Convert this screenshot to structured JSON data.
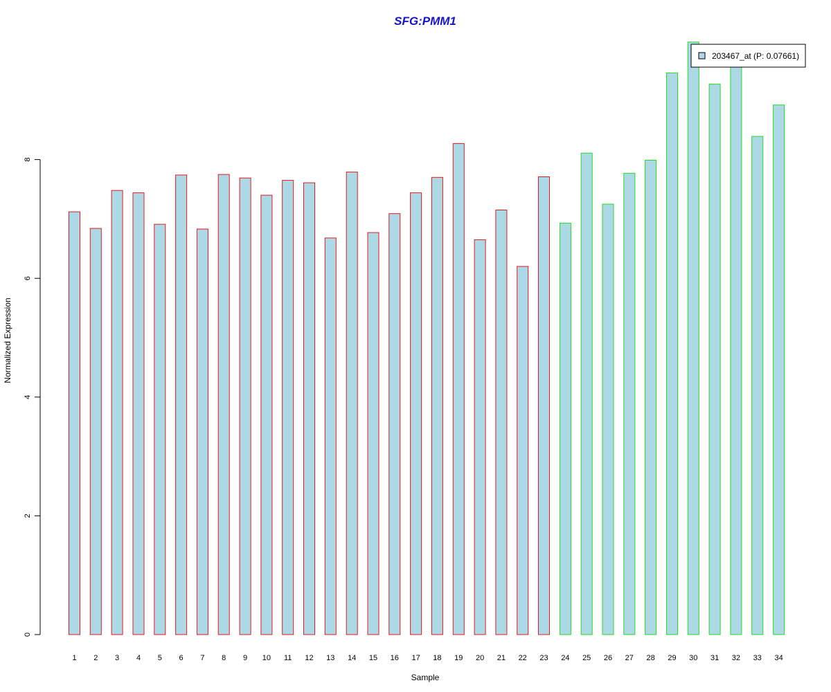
{
  "chart_data": {
    "type": "bar",
    "title": "SFG:PMM1",
    "xlabel": "Sample",
    "ylabel": "Normalized Expression",
    "ylim": [
      0,
      10
    ],
    "yticks": [
      0,
      2,
      4,
      6,
      8
    ],
    "categories": [
      "1",
      "2",
      "3",
      "4",
      "5",
      "6",
      "7",
      "8",
      "9",
      "10",
      "11",
      "12",
      "13",
      "14",
      "15",
      "16",
      "17",
      "18",
      "19",
      "20",
      "21",
      "22",
      "23",
      "24",
      "25",
      "26",
      "27",
      "28",
      "29",
      "30",
      "31",
      "32",
      "33",
      "34"
    ],
    "values": [
      7.12,
      6.84,
      7.48,
      7.44,
      6.91,
      7.74,
      6.83,
      7.75,
      7.69,
      7.4,
      7.65,
      7.61,
      6.68,
      7.79,
      6.77,
      7.09,
      7.44,
      7.7,
      8.27,
      6.65,
      7.15,
      6.2,
      7.71,
      6.93,
      8.11,
      7.25,
      7.77,
      7.99,
      9.46,
      9.98,
      9.27,
      9.91,
      8.39,
      8.92
    ],
    "groups": [
      {
        "from": 1,
        "to": 23,
        "border_color": "#e31a1c"
      },
      {
        "from": 24,
        "to": 34,
        "border_color": "#22dd22"
      }
    ],
    "bar_fill": "#add8e6",
    "title_color": "#1515cc",
    "legend": {
      "label": "203467_at (P: 0.07661)",
      "position": "top-right",
      "swatch_color": "#add8e6"
    }
  }
}
